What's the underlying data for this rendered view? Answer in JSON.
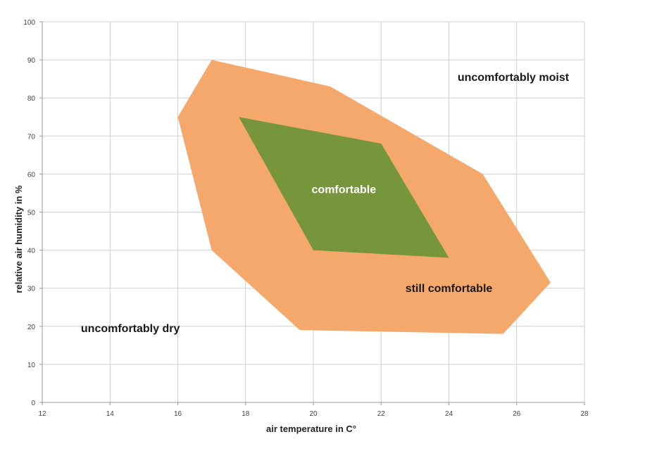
{
  "chart_data": {
    "type": "area",
    "xlabel": "air temperature in C°",
    "ylabel": "relative air humidity in %",
    "xlim": [
      12,
      28
    ],
    "ylim": [
      0,
      100
    ],
    "x_ticks": [
      12,
      14,
      16,
      18,
      20,
      22,
      24,
      26,
      28
    ],
    "y_ticks": [
      0,
      10,
      20,
      30,
      40,
      50,
      60,
      70,
      80,
      90,
      100
    ],
    "grid": true,
    "regions": [
      {
        "label": "still comfortable",
        "color": "#f5a86c",
        "label_color": "#1a1a1a",
        "label_at": [
          24.0,
          29.0
        ],
        "points": [
          [
            16,
            75
          ],
          [
            17,
            90
          ],
          [
            20.5,
            83
          ],
          [
            25,
            60
          ],
          [
            27,
            31.5
          ],
          [
            25.6,
            18
          ],
          [
            19.6,
            19
          ],
          [
            17,
            40
          ]
        ]
      },
      {
        "label": "comfortable",
        "color": "#77963c",
        "label_color": "#ffffff",
        "label_at": [
          20.9,
          55.0
        ],
        "points": [
          [
            17.8,
            75
          ],
          [
            22,
            68
          ],
          [
            24,
            38
          ],
          [
            20,
            40
          ]
        ]
      }
    ],
    "annotations": [
      {
        "text": "uncomfortably moist",
        "at": [
          25.9,
          84.5
        ]
      },
      {
        "text": "uncomfortably dry",
        "at": [
          14.6,
          18.5
        ]
      }
    ],
    "annotation_color": "#1a1a1a",
    "grid_color": "#d0d0d0"
  }
}
